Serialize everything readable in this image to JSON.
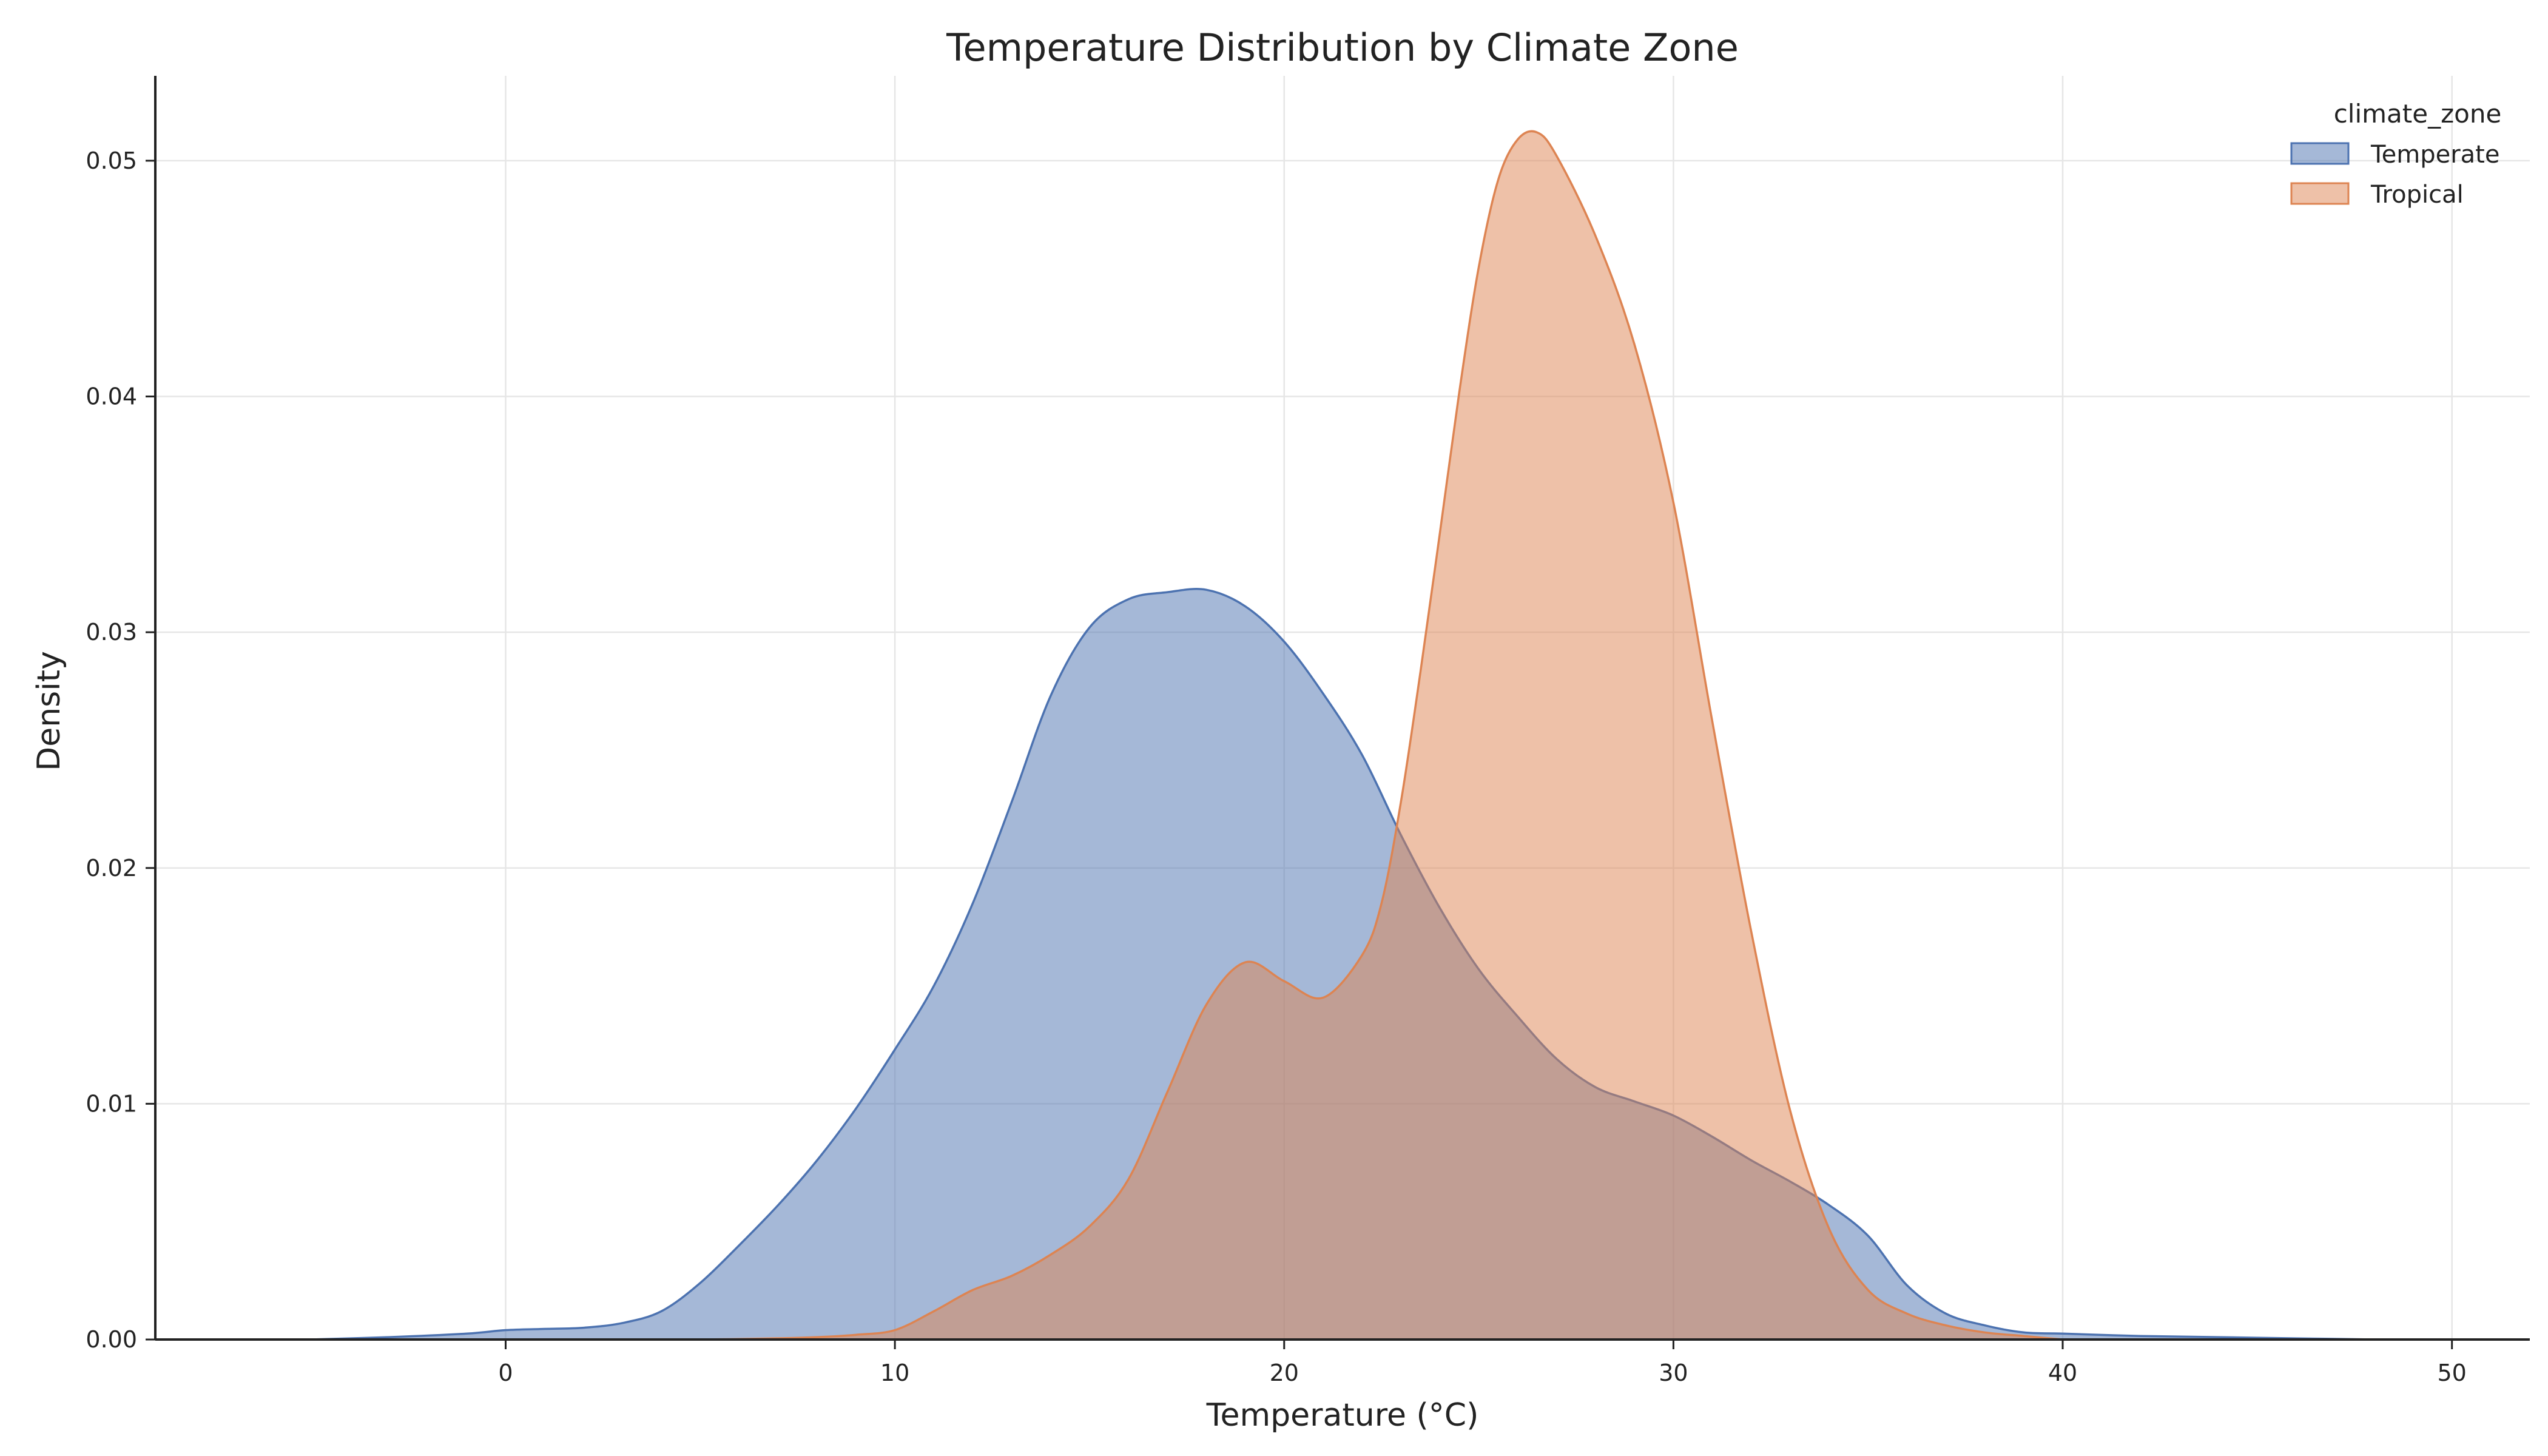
{
  "chart_data": {
    "type": "area",
    "title": "Temperature Distribution by Climate Zone",
    "xlabel": "Temperature (°C)",
    "ylabel": "Density",
    "xlim": [
      -9,
      52
    ],
    "ylim": [
      0,
      0.0536
    ],
    "xticks": [
      0,
      10,
      20,
      30,
      40,
      50
    ],
    "yticks": [
      0.0,
      0.01,
      0.02,
      0.03,
      0.04,
      0.05
    ],
    "xtick_labels": [
      "0",
      "10",
      "20",
      "30",
      "40",
      "50"
    ],
    "ytick_labels": [
      "0.00",
      "0.01",
      "0.02",
      "0.03",
      "0.04",
      "0.05"
    ],
    "grid": true,
    "legend": {
      "title": "climate_zone",
      "position": "top-right"
    },
    "series": [
      {
        "name": "Temperate",
        "color": "#4C72B0",
        "fill_opacity": 0.5,
        "x": [
          -5,
          -3,
          -1,
          0,
          1,
          2,
          3,
          4,
          5,
          6,
          7,
          8,
          9,
          10,
          11,
          12,
          13,
          14,
          15,
          16,
          17,
          18,
          19,
          20,
          21,
          22,
          23,
          24,
          25,
          26,
          27,
          28,
          29,
          30,
          31,
          32,
          33,
          34,
          35,
          36,
          37,
          38,
          39,
          40,
          42,
          44,
          46,
          48
        ],
        "y": [
          0.0,
          0.0001,
          0.00025,
          0.0004,
          0.00045,
          0.0005,
          0.0007,
          0.0012,
          0.0024,
          0.004,
          0.0057,
          0.0076,
          0.0098,
          0.0123,
          0.015,
          0.0185,
          0.0228,
          0.0273,
          0.0302,
          0.0314,
          0.0317,
          0.0318,
          0.0311,
          0.0296,
          0.0274,
          0.0248,
          0.0214,
          0.0183,
          0.0157,
          0.0137,
          0.0119,
          0.0107,
          0.0101,
          0.0095,
          0.0086,
          0.0076,
          0.0067,
          0.0057,
          0.0044,
          0.0023,
          0.0011,
          0.0006,
          0.0003,
          0.00025,
          0.00015,
          0.0001,
          5e-05,
          0.0
        ]
      },
      {
        "name": "Tropical",
        "color": "#DD8452",
        "fill_opacity": 0.5,
        "x": [
          4,
          6,
          8,
          9,
          10,
          11,
          12,
          13,
          14,
          15,
          16,
          17,
          18,
          19,
          20,
          21,
          22,
          22.5,
          23,
          23.5,
          24,
          24.5,
          25,
          25.5,
          26,
          26.5,
          27,
          28,
          29,
          30,
          31,
          32,
          33,
          34,
          35,
          36,
          37,
          38,
          39,
          40
        ],
        "y": [
          0.0,
          2e-05,
          0.0001,
          0.0002,
          0.0004,
          0.0012,
          0.0021,
          0.0027,
          0.0036,
          0.0048,
          0.0068,
          0.0105,
          0.0142,
          0.016,
          0.0152,
          0.0145,
          0.0163,
          0.0185,
          0.0228,
          0.0283,
          0.0342,
          0.0402,
          0.0455,
          0.0492,
          0.0509,
          0.0512,
          0.0502,
          0.0468,
          0.0422,
          0.0355,
          0.0262,
          0.0173,
          0.0097,
          0.0047,
          0.0021,
          0.0011,
          0.0006,
          0.0003,
          0.00015,
          0.0
        ]
      }
    ]
  }
}
